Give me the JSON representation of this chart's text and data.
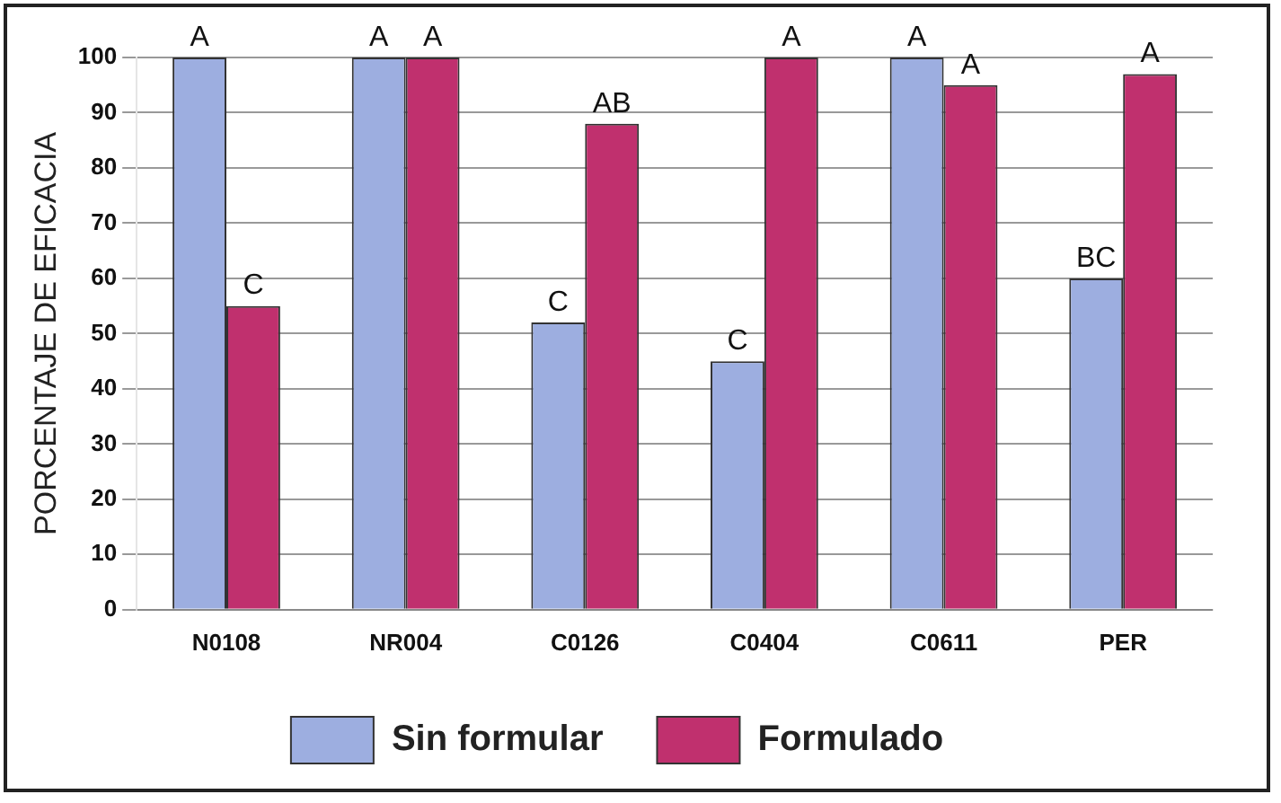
{
  "chart_data": {
    "type": "bar",
    "ylabel": "PORCENTAJE DE EFICACIA",
    "categories": [
      "N0108",
      "NR004",
      "C0126",
      "C0404",
      "C0611",
      "PER"
    ],
    "series": [
      {
        "name": "Sin formular",
        "color": "#9daee0",
        "values": [
          100,
          100,
          52,
          45,
          100,
          60
        ],
        "value_labels": [
          "A",
          "A",
          "C",
          "C",
          "A",
          "BC"
        ]
      },
      {
        "name": "Formulado",
        "color": "#c0306e",
        "values": [
          55,
          100,
          88,
          100,
          95,
          97
        ],
        "value_labels": [
          "C",
          "A",
          "AB",
          "A",
          "A",
          "A"
        ]
      }
    ],
    "ylim": [
      0,
      100
    ],
    "yticks": [
      0,
      10,
      20,
      30,
      40,
      50,
      60,
      70,
      80,
      90,
      100
    ],
    "grid": "y",
    "legend": "bottom"
  }
}
